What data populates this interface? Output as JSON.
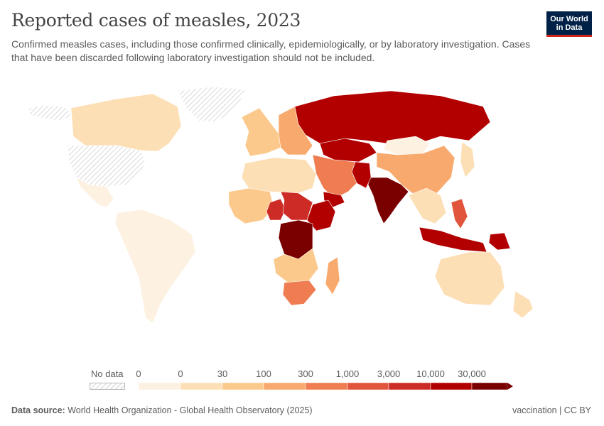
{
  "header": {
    "title": "Reported cases of measles, 2023",
    "subtitle": "Confirmed measles cases, including those confirmed clinically, epidemiologically, or by laboratory investigation. Cases that have been discarded following laboratory investigation should not be included."
  },
  "logo": {
    "line1": "Our World",
    "line2": "in Data",
    "bg_color": "#002147",
    "accent_color": "#ce261e"
  },
  "legend": {
    "no_data_label": "No data",
    "ticks": [
      "0",
      "0",
      "30",
      "100",
      "300",
      "1,000",
      "3,000",
      "10,000",
      "30,000"
    ],
    "colors": [
      "#fdf1e1",
      "#fddfb6",
      "#fcc98c",
      "#f8aa6e",
      "#ef7d51",
      "#e2553d",
      "#cd2c26",
      "#b20000",
      "#7a0000"
    ]
  },
  "map_data": {
    "regions": [
      {
        "name": "Canada",
        "bin": 1
      },
      {
        "name": "United States",
        "bin": -1
      },
      {
        "name": "Mexico",
        "bin": 0
      },
      {
        "name": "Greenland",
        "bin": -1
      },
      {
        "name": "Alaska",
        "bin": -1
      },
      {
        "name": "South America",
        "bin": 0
      },
      {
        "name": "Europe West",
        "bin": 2
      },
      {
        "name": "Europe East",
        "bin": 3
      },
      {
        "name": "Kazakhstan",
        "bin": 7
      },
      {
        "name": "Russia",
        "bin": 7
      },
      {
        "name": "Mongolia",
        "bin": 0
      },
      {
        "name": "China",
        "bin": 3
      },
      {
        "name": "India",
        "bin": 8
      },
      {
        "name": "Pakistan",
        "bin": 7
      },
      {
        "name": "Middle East",
        "bin": 4
      },
      {
        "name": "Yemen",
        "bin": 7
      },
      {
        "name": "North Africa",
        "bin": 1
      },
      {
        "name": "Sahel West",
        "bin": 2
      },
      {
        "name": "Nigeria",
        "bin": 6
      },
      {
        "name": "Ethiopia",
        "bin": 7
      },
      {
        "name": "Sudan",
        "bin": 6
      },
      {
        "name": "DR Congo",
        "bin": 8
      },
      {
        "name": "Southern Africa",
        "bin": 2
      },
      {
        "name": "South Africa",
        "bin": 4
      },
      {
        "name": "Madagascar",
        "bin": 3
      },
      {
        "name": "Southeast Asia",
        "bin": 1
      },
      {
        "name": "Indonesia",
        "bin": 7
      },
      {
        "name": "Philippines",
        "bin": 5
      },
      {
        "name": "Papua New Guinea",
        "bin": 7
      },
      {
        "name": "Australia",
        "bin": 1
      },
      {
        "name": "New Zealand",
        "bin": 1
      },
      {
        "name": "Japan",
        "bin": 1
      }
    ]
  },
  "footer": {
    "source_label": "Data source:",
    "source_text": "World Health Organization - Global Health Observatory (2025)",
    "license": "vaccination | CC BY"
  }
}
